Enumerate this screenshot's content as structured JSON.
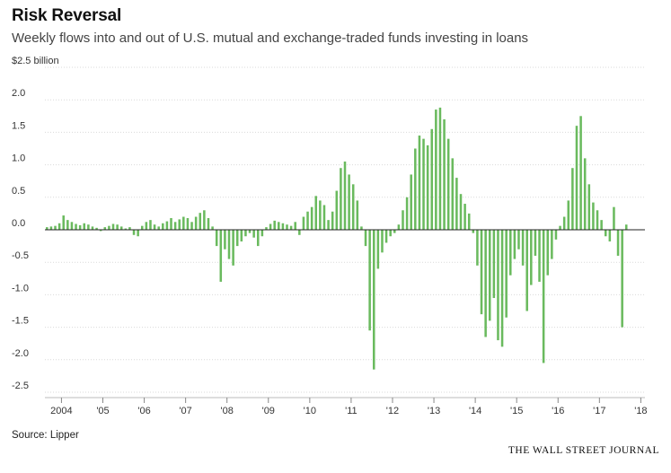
{
  "chart_data": {
    "type": "bar",
    "title": "Risk Reversal",
    "subtitle": "Weekly flows into and out of U.S. mutual and exchange-traded funds investing in loans",
    "ylabel": "",
    "ylim": [
      -2.5,
      2.5
    ],
    "y_ticks": [
      {
        "value": 2.5,
        "label": "$2.5 billion"
      },
      {
        "value": 2.0,
        "label": "2.0"
      },
      {
        "value": 1.5,
        "label": "1.5"
      },
      {
        "value": 1.0,
        "label": "1.0"
      },
      {
        "value": 0.5,
        "label": "0.5"
      },
      {
        "value": 0.0,
        "label": "0.0"
      },
      {
        "value": -0.5,
        "label": "-0.5"
      },
      {
        "value": -1.0,
        "label": "-1.0"
      },
      {
        "value": -1.5,
        "label": "-1.5"
      },
      {
        "value": -2.0,
        "label": "-2.0"
      },
      {
        "value": -2.5,
        "label": "-2.5"
      }
    ],
    "xlim": [
      2003.6,
      2018.1
    ],
    "x_ticks": [
      {
        "value": 2004,
        "label": "2004"
      },
      {
        "value": 2005,
        "label": "'05"
      },
      {
        "value": 2006,
        "label": "'06"
      },
      {
        "value": 2007,
        "label": "'07"
      },
      {
        "value": 2008,
        "label": "'08"
      },
      {
        "value": 2009,
        "label": "'09"
      },
      {
        "value": 2010,
        "label": "'10"
      },
      {
        "value": 2011,
        "label": "'11"
      },
      {
        "value": 2012,
        "label": "'12"
      },
      {
        "value": 2013,
        "label": "'13"
      },
      {
        "value": 2014,
        "label": "'14"
      },
      {
        "value": 2015,
        "label": "'15"
      },
      {
        "value": 2016,
        "label": "'16"
      },
      {
        "value": 2017,
        "label": "'17"
      },
      {
        "value": 2018,
        "label": "'18"
      }
    ],
    "series": [
      {
        "name": "Weekly flows ($ billion)",
        "color": "#6aba5e",
        "start_year": 2003.65,
        "step_years": 0.1,
        "values": [
          0.04,
          0.05,
          0.06,
          0.1,
          0.22,
          0.15,
          0.12,
          0.09,
          0.07,
          0.1,
          0.08,
          0.05,
          0.03,
          -0.02,
          0.04,
          0.06,
          0.09,
          0.08,
          0.05,
          0.02,
          0.04,
          -0.08,
          -0.1,
          0.06,
          0.12,
          0.15,
          0.08,
          0.05,
          0.1,
          0.13,
          0.18,
          0.12,
          0.16,
          0.2,
          0.18,
          0.12,
          0.2,
          0.26,
          0.3,
          0.18,
          0.05,
          -0.25,
          -0.8,
          -0.3,
          -0.45,
          -0.55,
          -0.25,
          -0.18,
          -0.1,
          -0.05,
          -0.12,
          -0.25,
          -0.1,
          0.04,
          0.09,
          0.14,
          0.12,
          0.1,
          0.08,
          0.06,
          0.12,
          -0.08,
          0.2,
          0.28,
          0.35,
          0.52,
          0.45,
          0.38,
          0.15,
          0.28,
          0.6,
          0.95,
          1.05,
          0.85,
          0.7,
          0.45,
          0.05,
          -0.25,
          -1.55,
          -2.15,
          -0.6,
          -0.35,
          -0.2,
          -0.1,
          -0.05,
          0.08,
          0.3,
          0.5,
          0.85,
          1.25,
          1.45,
          1.4,
          1.3,
          1.55,
          1.85,
          1.88,
          1.7,
          1.4,
          1.1,
          0.8,
          0.55,
          0.4,
          0.25,
          -0.05,
          -0.55,
          -1.3,
          -1.65,
          -1.4,
          -1.05,
          -1.7,
          -1.8,
          -1.35,
          -0.7,
          -0.45,
          -0.3,
          -0.55,
          -1.25,
          -0.85,
          -0.4,
          -0.8,
          -2.05,
          -0.7,
          -0.45,
          -0.15,
          0.06,
          0.2,
          0.45,
          0.95,
          1.6,
          1.75,
          1.1,
          0.7,
          0.42,
          0.3,
          0.15,
          -0.1,
          -0.18,
          0.35,
          -0.4,
          -1.5,
          0.08
        ]
      }
    ],
    "source": "Source: Lipper",
    "credit": "THE WALL STREET JOURNAL"
  }
}
